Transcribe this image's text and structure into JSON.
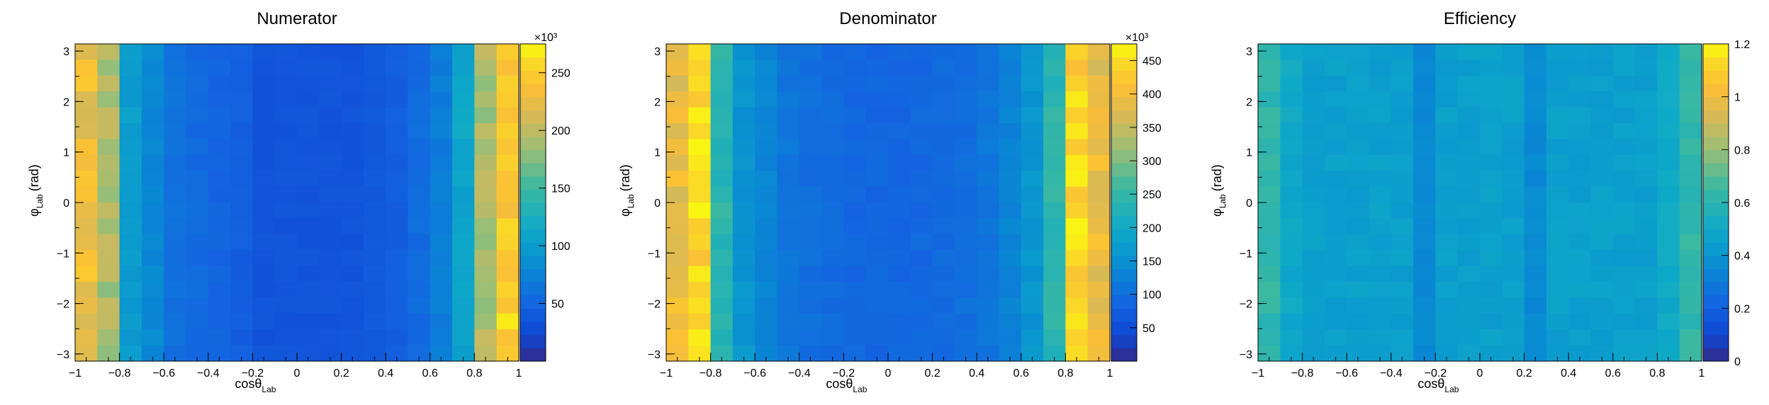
{
  "chart_data": [
    {
      "type": "heatmap",
      "title": "Numerator",
      "xlabel_main": "cosθ",
      "xlabel_sub": "Lab",
      "ylabel_main": "φ",
      "ylabel_sub": "Lab",
      "ylabel_unit": "(rad)",
      "xlim": [
        -1,
        1
      ],
      "ylim": [
        -3.1416,
        3.1416
      ],
      "xticks": [
        "−1",
        "−0.8",
        "−0.6",
        "−0.4",
        "−0.2",
        "0",
        "0.2",
        "0.4",
        "0.6",
        "0.8",
        "1"
      ],
      "xtick_values": [
        -1,
        -0.8,
        -0.6,
        -0.4,
        -0.2,
        0,
        0.2,
        0.4,
        0.6,
        0.8,
        1
      ],
      "yticks": [
        "−3",
        "−2",
        "−1",
        "0",
        "1",
        "2",
        "3"
      ],
      "ytick_values": [
        -3,
        -2,
        -1,
        0,
        1,
        2,
        3
      ],
      "bins_x": 20,
      "bins_y": 20,
      "zlim": [
        0,
        275
      ],
      "colorbar_exponent": "×10³",
      "colorbar_ticks": [
        "50",
        "100",
        "150",
        "200",
        "250"
      ],
      "colorbar_tick_values": [
        50,
        100,
        150,
        200,
        250
      ],
      "column_profile": [
        230,
        190,
        100,
        80,
        60,
        55,
        50,
        45,
        35,
        35,
        35,
        35,
        35,
        40,
        45,
        55,
        70,
        110,
        190,
        250
      ]
    },
    {
      "type": "heatmap",
      "title": "Denominator",
      "xlabel_main": "cosθ",
      "xlabel_sub": "Lab",
      "ylabel_main": "φ",
      "ylabel_sub": "Lab",
      "ylabel_unit": "(rad)",
      "xlim": [
        -1,
        1
      ],
      "ylim": [
        -3.1416,
        3.1416
      ],
      "xticks": [
        "−1",
        "−0.8",
        "−0.6",
        "−0.4",
        "−0.2",
        "0",
        "0.2",
        "0.4",
        "0.6",
        "0.8",
        "1"
      ],
      "xtick_values": [
        -1,
        -0.8,
        -0.6,
        -0.4,
        -0.2,
        0,
        0.2,
        0.4,
        0.6,
        0.8,
        1
      ],
      "yticks": [
        "−3",
        "−2",
        "−1",
        "0",
        "1",
        "2",
        "3"
      ],
      "ytick_values": [
        -3,
        -2,
        -1,
        0,
        1,
        2,
        3
      ],
      "bins_x": 20,
      "bins_y": 20,
      "zlim": [
        0,
        475
      ],
      "colorbar_exponent": "×10³",
      "colorbar_ticks": [
        "50",
        "100",
        "150",
        "200",
        "250",
        "300",
        "350",
        "400",
        "450"
      ],
      "colorbar_tick_values": [
        50,
        100,
        150,
        200,
        250,
        300,
        350,
        400,
        450
      ],
      "column_profile": [
        390,
        440,
        240,
        160,
        130,
        110,
        100,
        95,
        90,
        88,
        88,
        90,
        95,
        100,
        110,
        130,
        160,
        240,
        440,
        390
      ]
    },
    {
      "type": "heatmap",
      "title": "Efficiency",
      "xlabel_main": "cosθ",
      "xlabel_sub": "Lab",
      "ylabel_main": "φ",
      "ylabel_sub": "Lab",
      "ylabel_unit": "(rad)",
      "xlim": [
        -1,
        1
      ],
      "ylim": [
        -3.1416,
        3.1416
      ],
      "xticks": [
        "−1",
        "−0.8",
        "−0.6",
        "−0.4",
        "−0.2",
        "0",
        "0.2",
        "0.4",
        "0.6",
        "0.8",
        "1"
      ],
      "xtick_values": [
        -1,
        -0.8,
        -0.6,
        -0.4,
        -0.2,
        0,
        0.2,
        0.4,
        0.6,
        0.8,
        1
      ],
      "yticks": [
        "−3",
        "−2",
        "−1",
        "0",
        "1",
        "2",
        "3"
      ],
      "ytick_values": [
        -3,
        -2,
        -1,
        0,
        1,
        2,
        3
      ],
      "bins_x": 20,
      "bins_y": 20,
      "zlim": [
        0,
        1.2
      ],
      "colorbar_exponent": "",
      "colorbar_ticks": [
        "0",
        "0.2",
        "0.4",
        "0.6",
        "0.8",
        "1",
        "1.2"
      ],
      "colorbar_tick_values": [
        0,
        0.2,
        0.4,
        0.6,
        0.8,
        1,
        1.2
      ],
      "column_profile": [
        0.62,
        0.5,
        0.45,
        0.45,
        0.45,
        0.45,
        0.45,
        0.35,
        0.45,
        0.45,
        0.45,
        0.45,
        0.35,
        0.45,
        0.45,
        0.45,
        0.45,
        0.45,
        0.5,
        0.62
      ]
    }
  ]
}
